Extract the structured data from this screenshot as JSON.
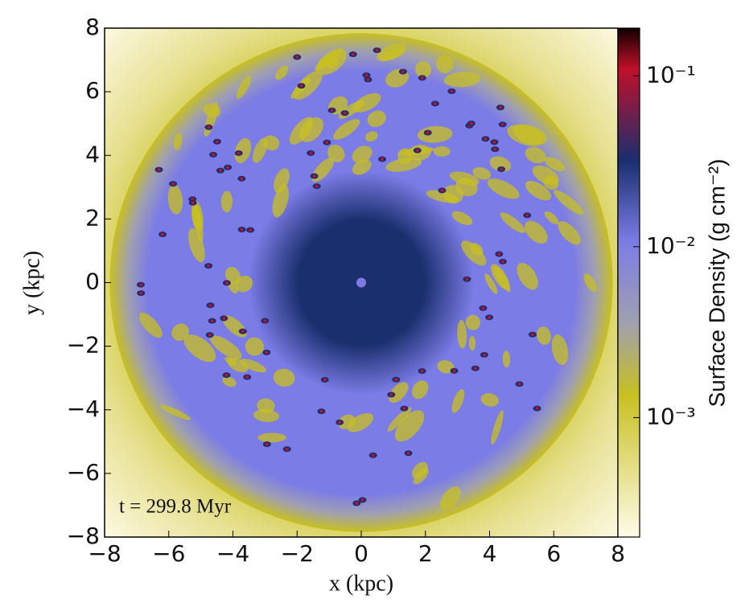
{
  "chart_data": {
    "type": "heatmap",
    "xlabel": "x  (kpc)",
    "ylabel": "y  (kpc)",
    "annotation": "t = 299.8 Myr",
    "xlim": [
      -8,
      8
    ],
    "ylim": [
      -8,
      8
    ],
    "xticks": [
      {
        "value": -8,
        "label": "−8"
      },
      {
        "value": -6,
        "label": "−6"
      },
      {
        "value": -4,
        "label": "−4"
      },
      {
        "value": -2,
        "label": "−2"
      },
      0,
      2,
      4,
      6,
      8
    ],
    "yticks": [
      {
        "value": -8,
        "label": "−8"
      },
      {
        "value": -6,
        "label": "−6"
      },
      {
        "value": -4,
        "label": "−4"
      },
      {
        "value": -2,
        "label": "−2"
      },
      0,
      2,
      4,
      6,
      8
    ],
    "colorbar": {
      "label": "Surface Density (g cm⁻²)",
      "log_scale": true,
      "clim": [
        0.0002,
        0.19
      ],
      "ticks": [
        {
          "value": 0.001,
          "label": "10⁻³"
        },
        {
          "value": 0.01,
          "label": "10⁻²"
        },
        {
          "value": 0.1,
          "label": "10⁻¹"
        }
      ],
      "colormap": [
        "#fffbe8",
        "#c8c020",
        "#a0a0b0",
        "#7c7ce6",
        "#1a2f6e",
        "#c0102a",
        "#100000"
      ]
    }
  }
}
